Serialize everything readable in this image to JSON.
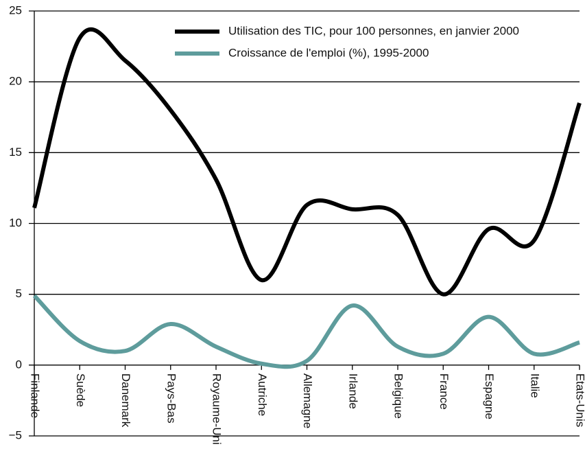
{
  "chart_data": {
    "type": "line",
    "categories": [
      "Finlande",
      "Suède",
      "Danemark",
      "Pays-Bas",
      "Royaume-Uni",
      "Autriche",
      "Allemagne",
      "Irlande",
      "Belgique",
      "France",
      "Espagne",
      "Italie",
      "Etats-Unis"
    ],
    "series": [
      {
        "name": "Utilisation des TIC, pour 100 personnes, en janvier 2000",
        "color": "#000000",
        "values": [
          11.1,
          23.1,
          21.5,
          18.0,
          13.1,
          6.0,
          11.3,
          11.0,
          10.6,
          5.0,
          9.6,
          8.8,
          18.5
        ]
      },
      {
        "name": "Croissance de l'emploi (%), 1995-2000",
        "color": "#5e9c9c",
        "values": [
          4.9,
          1.7,
          1.0,
          2.9,
          1.3,
          0.1,
          0.3,
          4.2,
          1.3,
          0.8,
          3.4,
          0.8,
          1.6
        ]
      }
    ],
    "ylim": [
      -5,
      25
    ],
    "yticks": [
      {
        "value": -5,
        "label": "−5"
      },
      0,
      5,
      10,
      15,
      20,
      25
    ],
    "grid": true,
    "legend": "top-right"
  }
}
